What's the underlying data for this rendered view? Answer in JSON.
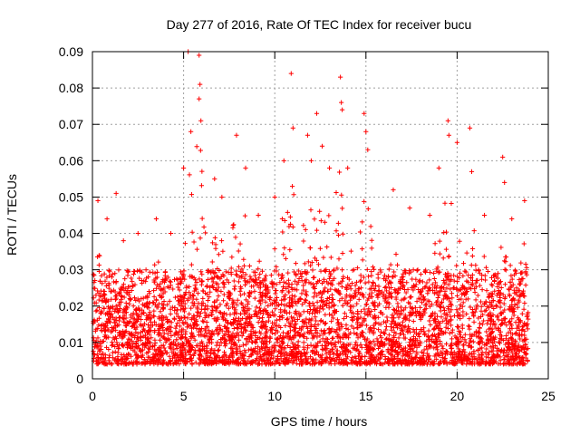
{
  "chart_data": {
    "type": "scatter",
    "title": "Day 277 of 2016, Rate Of TEC Index for receiver bucu",
    "xlabel": "GPS time / hours",
    "ylabel": "ROTI / TECUs",
    "xlim": [
      0,
      25
    ],
    "ylim": [
      0,
      0.09
    ],
    "x_ticks": [
      0,
      5,
      10,
      15,
      20,
      25
    ],
    "x_tick_labels": [
      "0",
      "5",
      "10",
      "15",
      "20",
      "25"
    ],
    "y_ticks": [
      0,
      0.01,
      0.02,
      0.03,
      0.04,
      0.05,
      0.06,
      0.07,
      0.08,
      0.09
    ],
    "y_tick_labels": [
      "0",
      "0.01",
      "0.02",
      "0.03",
      "0.04",
      "0.05",
      "0.06",
      "0.07",
      "0.08",
      "0.09"
    ],
    "grid": true,
    "marker": "plus",
    "series": [
      {
        "name": "ROTI",
        "color": "#ff0000",
        "x_range": [
          0.05,
          23.9
        ],
        "dense_band": [
          0.004,
          0.03
        ],
        "peak_activity": [
          {
            "x": 0.3,
            "y": 0.049
          },
          {
            "x": 0.8,
            "y": 0.044
          },
          {
            "x": 1.3,
            "y": 0.051
          },
          {
            "x": 1.7,
            "y": 0.038
          },
          {
            "x": 2.5,
            "y": 0.04
          },
          {
            "x": 3.5,
            "y": 0.044
          },
          {
            "x": 4.3,
            "y": 0.04
          },
          {
            "x": 5.0,
            "y": 0.058
          },
          {
            "x": 5.25,
            "y": 0.09
          },
          {
            "x": 5.4,
            "y": 0.068
          },
          {
            "x": 5.85,
            "y": 0.089
          },
          {
            "x": 5.9,
            "y": 0.081
          },
          {
            "x": 5.85,
            "y": 0.077
          },
          {
            "x": 5.95,
            "y": 0.071
          },
          {
            "x": 6.7,
            "y": 0.055
          },
          {
            "x": 7.1,
            "y": 0.05
          },
          {
            "x": 7.9,
            "y": 0.067
          },
          {
            "x": 8.4,
            "y": 0.058
          },
          {
            "x": 9.1,
            "y": 0.045
          },
          {
            "x": 10.0,
            "y": 0.05
          },
          {
            "x": 10.5,
            "y": 0.06
          },
          {
            "x": 10.9,
            "y": 0.084
          },
          {
            "x": 11.0,
            "y": 0.069
          },
          {
            "x": 11.8,
            "y": 0.067
          },
          {
            "x": 12.0,
            "y": 0.06
          },
          {
            "x": 12.3,
            "y": 0.073
          },
          {
            "x": 12.6,
            "y": 0.064
          },
          {
            "x": 13.0,
            "y": 0.058
          },
          {
            "x": 13.6,
            "y": 0.083
          },
          {
            "x": 13.65,
            "y": 0.076
          },
          {
            "x": 13.7,
            "y": 0.074
          },
          {
            "x": 14.0,
            "y": 0.058
          },
          {
            "x": 14.9,
            "y": 0.073
          },
          {
            "x": 15.0,
            "y": 0.068
          },
          {
            "x": 15.1,
            "y": 0.063
          },
          {
            "x": 16.5,
            "y": 0.052
          },
          {
            "x": 17.4,
            "y": 0.047
          },
          {
            "x": 18.5,
            "y": 0.045
          },
          {
            "x": 19.0,
            "y": 0.058
          },
          {
            "x": 19.5,
            "y": 0.071
          },
          {
            "x": 19.55,
            "y": 0.067
          },
          {
            "x": 20.0,
            "y": 0.065
          },
          {
            "x": 20.7,
            "y": 0.069
          },
          {
            "x": 20.8,
            "y": 0.057
          },
          {
            "x": 21.5,
            "y": 0.045
          },
          {
            "x": 22.5,
            "y": 0.061
          },
          {
            "x": 22.6,
            "y": 0.054
          },
          {
            "x": 23.0,
            "y": 0.044
          },
          {
            "x": 23.7,
            "y": 0.049
          }
        ]
      }
    ]
  }
}
